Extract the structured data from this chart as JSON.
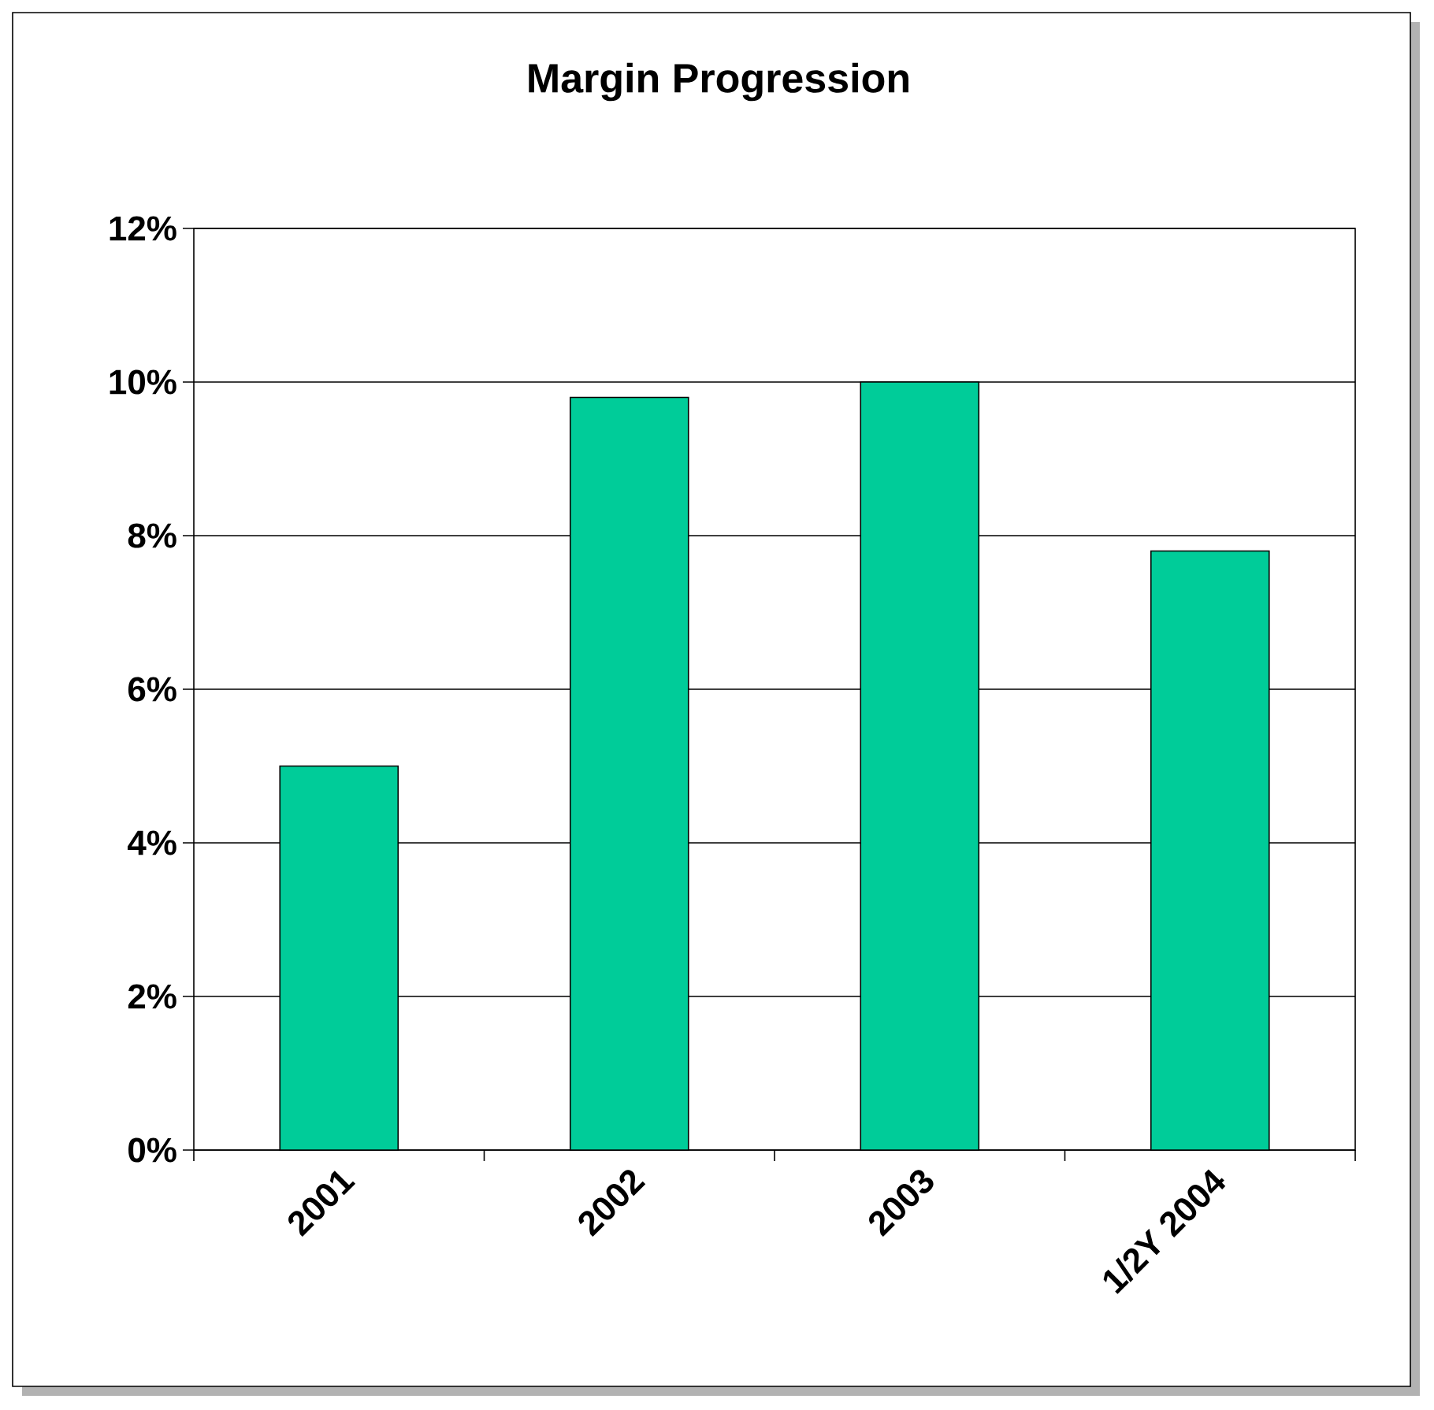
{
  "chart_data": {
    "type": "bar",
    "title": "Margin Progression",
    "categories": [
      "2001",
      "2002",
      "2003",
      "1/2Y 2004"
    ],
    "values": [
      5.0,
      9.8,
      10.0,
      7.8
    ],
    "color": "#00cc99",
    "ylim": [
      0,
      12
    ],
    "yticks": [
      {
        "value": 0,
        "label": "0%"
      },
      {
        "value": 2,
        "label": "2%"
      },
      {
        "value": 4,
        "label": "4%"
      },
      {
        "value": 6,
        "label": "6%"
      },
      {
        "value": 8,
        "label": "8%"
      },
      {
        "value": 10,
        "label": "10%"
      },
      {
        "value": 12,
        "label": "12%"
      }
    ],
    "grid": "y"
  }
}
